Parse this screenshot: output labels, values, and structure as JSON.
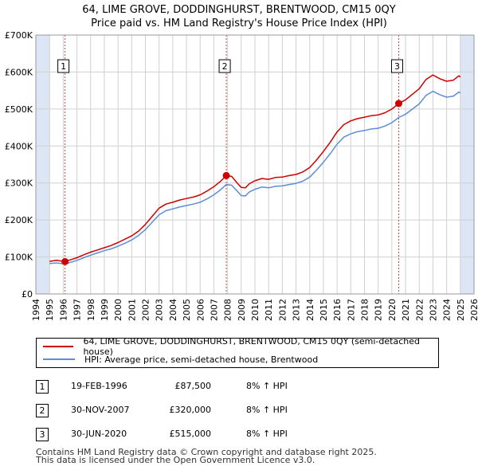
{
  "title": {
    "line1": "64, LIME GROVE, DODDINGHURST, BRENTWOOD, CM15 0QY",
    "line2": "Price paid vs. HM Land Registry's House Price Index (HPI)"
  },
  "colors": {
    "property": "#cc0000",
    "hpi": "#5b8ed6",
    "shade": "#dce6f5",
    "grid": "#d0d0d0",
    "marker_line": "#cc4444"
  },
  "chart_data": {
    "type": "line",
    "ylim": [
      0,
      700000
    ],
    "xlim": [
      1994,
      2026
    ],
    "y_ticks": [
      {
        "value": 0,
        "label": "£0"
      },
      {
        "value": 100000,
        "label": "£100K"
      },
      {
        "value": 200000,
        "label": "£200K"
      },
      {
        "value": 300000,
        "label": "£300K"
      },
      {
        "value": 400000,
        "label": "£400K"
      },
      {
        "value": 500000,
        "label": "£500K"
      },
      {
        "value": 600000,
        "label": "£600K"
      },
      {
        "value": 700000,
        "label": "£700K"
      }
    ],
    "x_ticks": [
      "1994",
      "1995",
      "1996",
      "1997",
      "1998",
      "1999",
      "2000",
      "2001",
      "2002",
      "2003",
      "2004",
      "2005",
      "2006",
      "2007",
      "2008",
      "2009",
      "2010",
      "2011",
      "2012",
      "2013",
      "2014",
      "2015",
      "2016",
      "2017",
      "2018",
      "2019",
      "2020",
      "2021",
      "2022",
      "2023",
      "2024",
      "2025",
      "2026"
    ],
    "shaded_regions": [
      [
        1994,
        1995
      ],
      [
        2025,
        2026
      ]
    ],
    "series": [
      {
        "name": "64, LIME GROVE, DODDINGHURST, BRENTWOOD, CM15 0QY (semi-detached house)",
        "color": "#cc0000",
        "points": [
          [
            1995.0,
            88000
          ],
          [
            1995.5,
            91000
          ],
          [
            1996.13,
            87500
          ],
          [
            1996.5,
            92000
          ],
          [
            1997.0,
            98000
          ],
          [
            1997.5,
            106000
          ],
          [
            1998.0,
            113000
          ],
          [
            1998.5,
            119000
          ],
          [
            1999.0,
            125000
          ],
          [
            1999.5,
            131000
          ],
          [
            2000.0,
            139000
          ],
          [
            2000.5,
            148000
          ],
          [
            2001.0,
            157000
          ],
          [
            2001.5,
            170000
          ],
          [
            2002.0,
            188000
          ],
          [
            2002.5,
            210000
          ],
          [
            2003.0,
            232000
          ],
          [
            2003.5,
            243000
          ],
          [
            2004.0,
            248000
          ],
          [
            2004.5,
            254000
          ],
          [
            2005.0,
            258000
          ],
          [
            2005.5,
            262000
          ],
          [
            2006.0,
            268000
          ],
          [
            2006.5,
            278000
          ],
          [
            2007.0,
            290000
          ],
          [
            2007.5,
            305000
          ],
          [
            2007.91,
            320000
          ],
          [
            2008.3,
            318000
          ],
          [
            2008.7,
            300000
          ],
          [
            2009.0,
            288000
          ],
          [
            2009.3,
            287000
          ],
          [
            2009.6,
            298000
          ],
          [
            2010.0,
            306000
          ],
          [
            2010.5,
            312000
          ],
          [
            2011.0,
            310000
          ],
          [
            2011.5,
            315000
          ],
          [
            2012.0,
            316000
          ],
          [
            2012.5,
            320000
          ],
          [
            2013.0,
            323000
          ],
          [
            2013.5,
            330000
          ],
          [
            2014.0,
            342000
          ],
          [
            2014.5,
            362000
          ],
          [
            2015.0,
            385000
          ],
          [
            2015.5,
            410000
          ],
          [
            2016.0,
            438000
          ],
          [
            2016.5,
            458000
          ],
          [
            2017.0,
            468000
          ],
          [
            2017.5,
            474000
          ],
          [
            2018.0,
            478000
          ],
          [
            2018.5,
            482000
          ],
          [
            2019.0,
            484000
          ],
          [
            2019.5,
            490000
          ],
          [
            2020.0,
            500000
          ],
          [
            2020.5,
            515000
          ],
          [
            2021.0,
            525000
          ],
          [
            2021.5,
            540000
          ],
          [
            2022.0,
            555000
          ],
          [
            2022.5,
            580000
          ],
          [
            2023.0,
            592000
          ],
          [
            2023.5,
            582000
          ],
          [
            2024.0,
            575000
          ],
          [
            2024.5,
            578000
          ],
          [
            2024.9,
            590000
          ],
          [
            2025.0,
            586000
          ]
        ]
      },
      {
        "name": "HPI: Average price, semi-detached house, Brentwood",
        "color": "#5b8ed6",
        "points": [
          [
            1995.0,
            82000
          ],
          [
            1995.5,
            84000
          ],
          [
            1996.13,
            81000
          ],
          [
            1996.5,
            85000
          ],
          [
            1997.0,
            91000
          ],
          [
            1997.5,
            98000
          ],
          [
            1998.0,
            105000
          ],
          [
            1998.5,
            111000
          ],
          [
            1999.0,
            117000
          ],
          [
            1999.5,
            122000
          ],
          [
            2000.0,
            129000
          ],
          [
            2000.5,
            137000
          ],
          [
            2001.0,
            146000
          ],
          [
            2001.5,
            158000
          ],
          [
            2002.0,
            174000
          ],
          [
            2002.5,
            194000
          ],
          [
            2003.0,
            214000
          ],
          [
            2003.5,
            225000
          ],
          [
            2004.0,
            230000
          ],
          [
            2004.5,
            235000
          ],
          [
            2005.0,
            239000
          ],
          [
            2005.5,
            243000
          ],
          [
            2006.0,
            248000
          ],
          [
            2006.5,
            257000
          ],
          [
            2007.0,
            268000
          ],
          [
            2007.5,
            282000
          ],
          [
            2007.91,
            296000
          ],
          [
            2008.3,
            294000
          ],
          [
            2008.7,
            278000
          ],
          [
            2009.0,
            266000
          ],
          [
            2009.3,
            265000
          ],
          [
            2009.6,
            276000
          ],
          [
            2010.0,
            283000
          ],
          [
            2010.5,
            289000
          ],
          [
            2011.0,
            287000
          ],
          [
            2011.5,
            291000
          ],
          [
            2012.0,
            292000
          ],
          [
            2012.5,
            296000
          ],
          [
            2013.0,
            299000
          ],
          [
            2013.5,
            305000
          ],
          [
            2014.0,
            316000
          ],
          [
            2014.5,
            335000
          ],
          [
            2015.0,
            356000
          ],
          [
            2015.5,
            379000
          ],
          [
            2016.0,
            405000
          ],
          [
            2016.5,
            424000
          ],
          [
            2017.0,
            433000
          ],
          [
            2017.5,
            439000
          ],
          [
            2018.0,
            442000
          ],
          [
            2018.5,
            446000
          ],
          [
            2019.0,
            448000
          ],
          [
            2019.5,
            454000
          ],
          [
            2020.0,
            463000
          ],
          [
            2020.5,
            477000
          ],
          [
            2021.0,
            486000
          ],
          [
            2021.5,
            500000
          ],
          [
            2022.0,
            514000
          ],
          [
            2022.5,
            537000
          ],
          [
            2023.0,
            548000
          ],
          [
            2023.5,
            539000
          ],
          [
            2024.0,
            532000
          ],
          [
            2024.5,
            535000
          ],
          [
            2024.9,
            546000
          ],
          [
            2025.0,
            543000
          ]
        ]
      }
    ],
    "sales": [
      {
        "label": "1",
        "x": 1996.13,
        "y": 87500
      },
      {
        "label": "2",
        "x": 2007.91,
        "y": 320000
      },
      {
        "label": "3",
        "x": 2020.5,
        "y": 515000
      }
    ]
  },
  "legend": {
    "property_label": "64, LIME GROVE, DODDINGHURST, BRENTWOOD, CM15 0QY (semi-detached house)",
    "hpi_label": "HPI: Average price, semi-detached house, Brentwood"
  },
  "transactions": [
    {
      "num": "1",
      "date": "19-FEB-1996",
      "price": "£87,500",
      "hpi": "8% ↑ HPI"
    },
    {
      "num": "2",
      "date": "30-NOV-2007",
      "price": "£320,000",
      "hpi": "8% ↑ HPI"
    },
    {
      "num": "3",
      "date": "30-JUN-2020",
      "price": "£515,000",
      "hpi": "8% ↑ HPI"
    }
  ],
  "footer": {
    "line1": "Contains HM Land Registry data © Crown copyright and database right 2025.",
    "line2": "This data is licensed under the Open Government Licence v3.0."
  }
}
